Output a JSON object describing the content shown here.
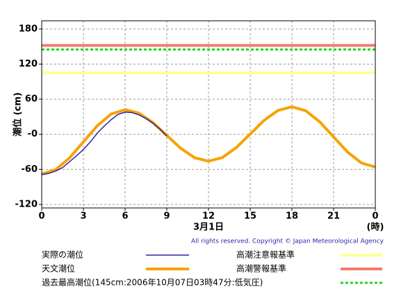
{
  "chart_data": {
    "type": "line",
    "ylabel": "潮位 (cm)",
    "xlabel": "3月1日",
    "xunit": "(時)",
    "copyright": "All rights reserved. Copyright © Japan Meteorological Agency",
    "xlim": [
      0,
      24
    ],
    "xticks": [
      0,
      3,
      6,
      9,
      12,
      15,
      18,
      21,
      {
        "value": 24,
        "label": "0"
      }
    ],
    "ylim": [
      -126,
      194
    ],
    "yticks": [
      180,
      120,
      60,
      {
        "value": 0,
        "label": "-0"
      },
      -60,
      -120
    ],
    "grid": true,
    "series": [
      {
        "name": "天文潮位",
        "color": "#f5a300",
        "x": [
          0,
          1,
          2,
          3,
          4,
          5,
          6,
          7,
          8,
          9,
          10,
          11,
          12,
          13,
          14,
          15,
          16,
          17,
          18,
          19,
          20,
          21,
          22,
          23,
          24
        ],
        "values": [
          -68,
          -60.6,
          -40.5,
          -13,
          14.5,
          34.6,
          42,
          36.1,
          20,
          -2,
          -24,
          -40.1,
          -46,
          -39.8,
          -22.8,
          0.5,
          23.8,
          40.8,
          47,
          40.1,
          21.3,
          -4.5,
          -30.3,
          -49.1,
          -56
        ]
      },
      {
        "name": "実際の潮位",
        "color": "#2b1fa8",
        "x": [
          0,
          0.5,
          1,
          1.5,
          2,
          2.5,
          3,
          3.5,
          4,
          4.5,
          5,
          5.5,
          6,
          6.5,
          7,
          7.5,
          8,
          8.5,
          9
        ],
        "values": [
          -69,
          -67,
          -63,
          -57,
          -47,
          -37,
          -26,
          -13,
          2,
          14,
          25,
          34,
          38,
          37,
          33,
          27,
          19,
          9,
          -3
        ]
      }
    ],
    "reference_lines": [
      {
        "name": "高潮注意報基準",
        "value": 105,
        "color": "#ffff99",
        "style": "solid"
      },
      {
        "name": "高潮警報基準",
        "value": 152,
        "color": "#f47b6b",
        "style": "solid"
      },
      {
        "name": "過去最高潮位(145cm:2006年10月07日03時47分:低気圧)",
        "value": 145,
        "color": "#1fd61f",
        "style": "dashed"
      }
    ]
  }
}
